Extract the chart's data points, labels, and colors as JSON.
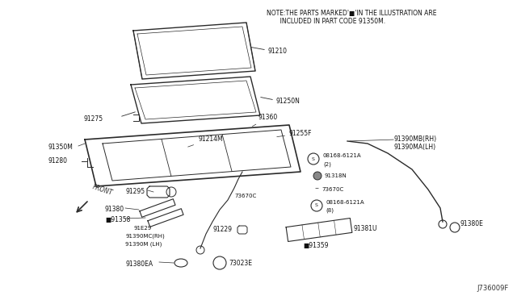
{
  "bg_color": "#ffffff",
  "fig_width": 6.4,
  "fig_height": 3.72,
  "dpi": 100,
  "note_line1": "NOTE:THE PARTS MARKED'■'IN THE ILLUSTRATION ARE",
  "note_line2": "       INCLUDED IN PART CODE 91350M.",
  "diagram_id": "J736009F"
}
